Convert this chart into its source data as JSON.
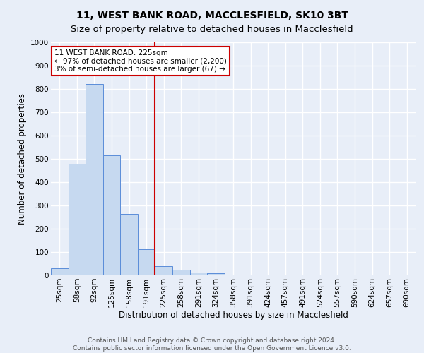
{
  "title": "11, WEST BANK ROAD, MACCLESFIELD, SK10 3BT",
  "subtitle": "Size of property relative to detached houses in Macclesfield",
  "xlabel": "Distribution of detached houses by size in Macclesfield",
  "ylabel": "Number of detached properties",
  "bin_labels": [
    "25sqm",
    "58sqm",
    "92sqm",
    "125sqm",
    "158sqm",
    "191sqm",
    "225sqm",
    "258sqm",
    "291sqm",
    "324sqm",
    "358sqm",
    "391sqm",
    "424sqm",
    "457sqm",
    "491sqm",
    "524sqm",
    "557sqm",
    "590sqm",
    "624sqm",
    "657sqm",
    "690sqm"
  ],
  "bar_heights": [
    30,
    480,
    820,
    515,
    265,
    112,
    40,
    25,
    12,
    8,
    0,
    0,
    0,
    0,
    0,
    0,
    0,
    0,
    0,
    0,
    0
  ],
  "bar_color": "#c6d9f0",
  "bar_edge_color": "#5b8dd9",
  "vline_x_index": 6,
  "vline_color": "#cc0000",
  "ylim": [
    0,
    1000
  ],
  "yticks": [
    0,
    100,
    200,
    300,
    400,
    500,
    600,
    700,
    800,
    900,
    1000
  ],
  "annotation_text": "11 WEST BANK ROAD: 225sqm\n← 97% of detached houses are smaller (2,200)\n3% of semi-detached houses are larger (67) →",
  "annotation_box_color": "#ffffff",
  "annotation_box_edge_color": "#cc0000",
  "footer_line1": "Contains HM Land Registry data © Crown copyright and database right 2024.",
  "footer_line2": "Contains public sector information licensed under the Open Government Licence v3.0.",
  "background_color": "#e8eef8",
  "grid_color": "#ffffff",
  "title_fontsize": 10,
  "subtitle_fontsize": 9.5,
  "axis_label_fontsize": 8.5,
  "tick_fontsize": 7.5,
  "annotation_fontsize": 7.5,
  "footer_fontsize": 6.5
}
